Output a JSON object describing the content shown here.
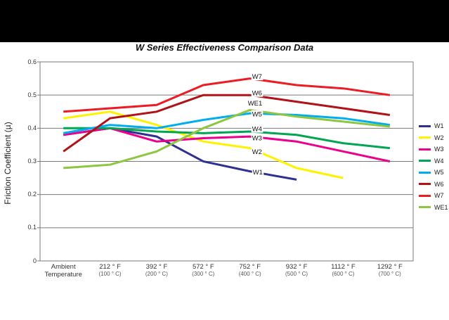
{
  "chart_data": {
    "type": "line",
    "title": "W Series Effectiveness Comparison Data",
    "ylabel": "Friction Coefficient (µ)",
    "xlabel": "",
    "ylim": [
      0,
      0.6
    ],
    "y_ticks": [
      "0.6",
      "0.5",
      "0.4",
      "0.3",
      "0.2",
      "0.1",
      "0"
    ],
    "y_tick_values": [
      0.6,
      0.5,
      0.4,
      0.3,
      0.2,
      0.1,
      0
    ],
    "grid": true,
    "legend_position": "right",
    "inline_label_anchor_index": 4,
    "categories": [
      {
        "line1": "Ambient",
        "line2": "Temperature",
        "is_ambient": true
      },
      {
        "line1": "212 ° F",
        "line2": "(100 ° C)",
        "is_ambient": false
      },
      {
        "line1": "392 ° F",
        "line2": "(200 ° C)",
        "is_ambient": false
      },
      {
        "line1": "572 ° F",
        "line2": "(300 ° C)",
        "is_ambient": false
      },
      {
        "line1": "752 ° F",
        "line2": "(400 ° C)",
        "is_ambient": false
      },
      {
        "line1": "932 ° F",
        "line2": "(500 ° C)",
        "is_ambient": false
      },
      {
        "line1": "1112 ° F",
        "line2": "(600 ° C)",
        "is_ambient": false
      },
      {
        "line1": "1292 ° F",
        "line2": "(700 ° C)",
        "is_ambient": false
      }
    ],
    "series": [
      {
        "name": "W1",
        "color": "#2E3192",
        "values": [
          0.38,
          0.4,
          0.375,
          0.3,
          0.27,
          0.245,
          null,
          null
        ],
        "label_offset": [
          4,
          1
        ]
      },
      {
        "name": "W2",
        "color": "#FFF200",
        "values": [
          0.43,
          0.45,
          0.41,
          0.36,
          0.34,
          0.28,
          0.25,
          null
        ],
        "label_offset": [
          3,
          5
        ]
      },
      {
        "name": "W3",
        "color": "#EC008C",
        "values": [
          0.38,
          0.4,
          0.36,
          0.37,
          0.375,
          0.36,
          0.33,
          0.3
        ],
        "label_offset": [
          3,
          2
        ]
      },
      {
        "name": "W4",
        "color": "#00A651",
        "values": [
          0.4,
          0.4,
          0.39,
          0.385,
          0.39,
          0.38,
          0.355,
          0.34
        ],
        "label_offset": [
          3,
          -4
        ]
      },
      {
        "name": "W5",
        "color": "#00AEEF",
        "values": [
          0.385,
          0.41,
          0.4,
          0.425,
          0.445,
          0.44,
          0.43,
          0.41
        ],
        "label_offset": [
          3,
          1
        ]
      },
      {
        "name": "W6",
        "color": "#B01218",
        "values": [
          0.33,
          0.43,
          0.45,
          0.5,
          0.5,
          0.48,
          0.46,
          0.44
        ],
        "label_offset": [
          3,
          -3
        ]
      },
      {
        "name": "W7",
        "color": "#ED1C24",
        "values": [
          0.45,
          0.46,
          0.47,
          0.53,
          0.55,
          0.53,
          0.52,
          0.5
        ],
        "label_offset": [
          3,
          -3
        ]
      },
      {
        "name": "WE1",
        "color": "#8DC63F",
        "values": [
          0.28,
          0.29,
          0.33,
          0.4,
          0.455,
          0.435,
          0.42,
          0.405
        ],
        "label_offset": [
          -3,
          -10
        ]
      }
    ],
    "axis_color": "#7a7a7a",
    "gridline_color": "#7a7a7a"
  }
}
